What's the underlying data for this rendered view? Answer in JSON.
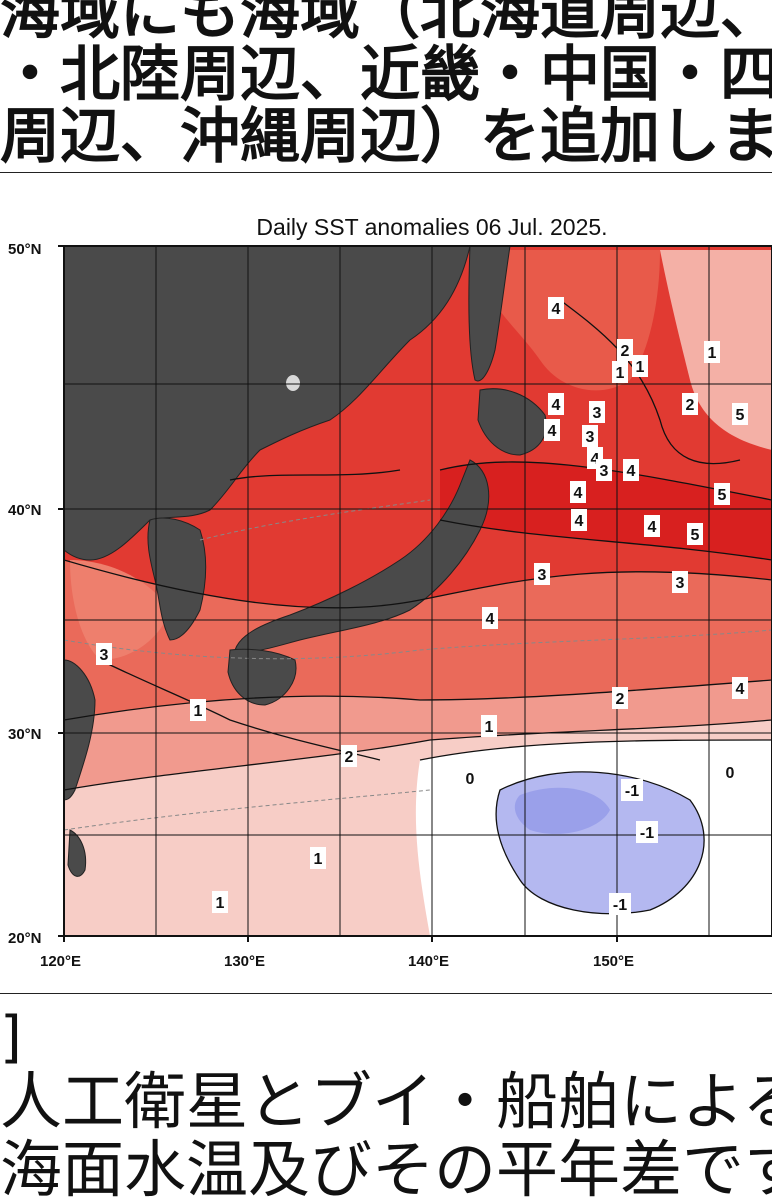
{
  "article": {
    "lines_top": [
      "海域にも海域（北海道周辺、",
      "・北陸周辺、近畿・中国・四",
      "周辺、沖縄周辺）を追加しま"
    ],
    "bracket": "]",
    "lines_bottom": [
      "人工衛星とブイ・船舶による",
      "海面水温及びその平年差です"
    ]
  },
  "map": {
    "title": "Daily SST anomalies 06 Jul. 2025.",
    "lat_labels": [
      "50°N",
      "40°N",
      "30°N",
      "20°N"
    ],
    "lon_labels": [
      "120°E",
      "130°E",
      "140°E",
      "150°E"
    ],
    "contour_labels": [
      "4",
      "2",
      "1",
      "1",
      "1",
      "4",
      "4",
      "3",
      "3",
      "4",
      "3",
      "4",
      "2",
      "5",
      "4",
      "5",
      "4",
      "5",
      "4",
      "3",
      "3",
      "4",
      "3",
      "1",
      "2",
      "4",
      "2",
      "1",
      "0",
      "0",
      "-1",
      "-1",
      "1",
      "1",
      "-1"
    ],
    "colors": {
      "land": "#4a4a4a",
      "anomaly_5": "#d8201f",
      "anomaly_4": "#e13a32",
      "anomaly_3": "#ea6a5a",
      "anomaly_2": "#f19a8e",
      "anomaly_1": "#f7cdc6",
      "anomaly_0": "#ffffff",
      "anomaly_neg1": "#b4b8f0"
    }
  }
}
